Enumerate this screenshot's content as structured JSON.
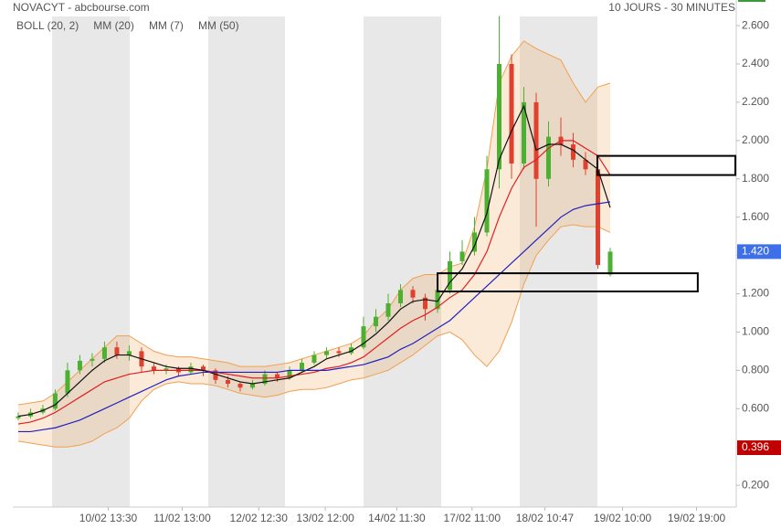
{
  "chart_data": {
    "type": "candlestick",
    "title": "NOVACYT - abcbourse.com",
    "subtitle": "10 JOURS - 30 MINUTES",
    "x": [
      0,
      1,
      2,
      3,
      4,
      5,
      6,
      7,
      8,
      9,
      10,
      11,
      12,
      13,
      14,
      15,
      16,
      17,
      18,
      19,
      20,
      21,
      22,
      23,
      24,
      25,
      26,
      27,
      28,
      29,
      30,
      31,
      32,
      33,
      34,
      35,
      36,
      37,
      38,
      39,
      40,
      41,
      42,
      43,
      44,
      45,
      46,
      47,
      48
    ],
    "xlim": [
      -0.44,
      58.22
    ],
    "xticks": [
      {
        "value": 7.3,
        "label": "10/02 13:30"
      },
      {
        "value": 13.3,
        "label": "11/02 13:00"
      },
      {
        "value": 19.5,
        "label": "12/02 12:30"
      },
      {
        "value": 24.9,
        "label": "13/02 12:00"
      },
      {
        "value": 30.7,
        "label": "14/02 11:30"
      },
      {
        "value": 36.8,
        "label": "17/02 11:00"
      },
      {
        "value": 42.7,
        "label": "18/02 10:47"
      },
      {
        "value": 49.0,
        "label": "19/02 10:00"
      },
      {
        "value": 55.0,
        "label": "19/02 19:00"
      }
    ],
    "ylim": [
      0.086,
      2.734
    ],
    "yticks": [
      {
        "value": 0.2,
        "label": "0.200"
      },
      {
        "value": 0.4,
        "label": "0.400"
      },
      {
        "value": 0.6,
        "label": "0.600"
      },
      {
        "value": 0.8,
        "label": "0.800"
      },
      {
        "value": 1.0,
        "label": "1.000"
      },
      {
        "value": 1.2,
        "label": "1.200"
      },
      {
        "value": 1.4,
        "label": "1.400"
      },
      {
        "value": 1.6,
        "label": "1.600"
      },
      {
        "value": 1.8,
        "label": "1.800"
      },
      {
        "value": 2.0,
        "label": "2.000"
      },
      {
        "value": 2.2,
        "label": "2.200"
      },
      {
        "value": 2.4,
        "label": "2.400"
      },
      {
        "value": 2.6,
        "label": "2.600"
      }
    ],
    "up_color": "#4cb030",
    "down_color": "#e0402e",
    "ohlc": {
      "open": [
        0.55,
        0.56,
        0.58,
        0.6,
        0.68,
        0.8,
        0.85,
        0.86,
        0.92,
        0.88,
        0.9,
        0.82,
        0.8,
        0.81,
        0.79,
        0.82,
        0.8,
        0.75,
        0.73,
        0.71,
        0.73,
        0.78,
        0.76,
        0.8,
        0.84,
        0.88,
        0.9,
        0.89,
        0.92,
        1.03,
        1.08,
        1.15,
        1.22,
        1.18,
        1.12,
        1.22,
        1.37,
        1.42,
        1.52,
        1.85,
        2.4,
        1.88,
        2.2,
        1.8,
        2.02,
        1.98,
        1.9,
        1.85,
        1.3
      ],
      "high": [
        0.58,
        0.6,
        0.62,
        0.7,
        0.84,
        0.88,
        0.89,
        0.95,
        0.95,
        0.93,
        0.92,
        0.84,
        0.83,
        0.82,
        0.84,
        0.83,
        0.81,
        0.77,
        0.74,
        0.75,
        0.8,
        0.79,
        0.82,
        0.86,
        0.9,
        0.92,
        0.92,
        0.94,
        1.08,
        1.12,
        1.2,
        1.25,
        1.24,
        1.2,
        1.25,
        1.42,
        1.48,
        1.6,
        1.92,
        2.65,
        2.45,
        2.28,
        2.25,
        2.1,
        2.12,
        2.04,
        1.94,
        1.88,
        1.44
      ],
      "low": [
        0.54,
        0.55,
        0.57,
        0.59,
        0.66,
        0.78,
        0.82,
        0.84,
        0.86,
        0.85,
        0.79,
        0.78,
        0.78,
        0.77,
        0.78,
        0.77,
        0.73,
        0.71,
        0.69,
        0.7,
        0.72,
        0.74,
        0.75,
        0.79,
        0.83,
        0.86,
        0.87,
        0.88,
        0.91,
        1.0,
        1.06,
        1.13,
        1.15,
        1.06,
        1.1,
        1.2,
        1.35,
        1.4,
        1.5,
        1.75,
        1.8,
        1.85,
        1.55,
        1.76,
        1.92,
        1.86,
        1.82,
        1.33,
        1.29
      ],
      "close": [
        0.56,
        0.58,
        0.6,
        0.68,
        0.8,
        0.85,
        0.86,
        0.92,
        0.88,
        0.9,
        0.82,
        0.8,
        0.81,
        0.79,
        0.82,
        0.8,
        0.75,
        0.73,
        0.71,
        0.73,
        0.78,
        0.76,
        0.8,
        0.84,
        0.88,
        0.9,
        0.89,
        0.92,
        1.03,
        1.08,
        1.15,
        1.22,
        1.18,
        1.12,
        1.22,
        1.37,
        1.42,
        1.52,
        1.85,
        2.4,
        1.88,
        2.2,
        1.8,
        2.02,
        1.98,
        1.9,
        1.85,
        1.35,
        1.42
      ]
    },
    "bollinger": {
      "name": "BOLL (20, 2)",
      "color": "#f0a050",
      "upper": [
        0.62,
        0.63,
        0.64,
        0.68,
        0.74,
        0.8,
        0.86,
        0.92,
        0.98,
        0.98,
        0.94,
        0.9,
        0.88,
        0.87,
        0.87,
        0.86,
        0.85,
        0.84,
        0.82,
        0.82,
        0.82,
        0.83,
        0.84,
        0.86,
        0.88,
        0.9,
        0.92,
        0.94,
        0.98,
        1.06,
        1.12,
        1.22,
        1.28,
        1.3,
        1.3,
        1.34,
        1.36,
        1.55,
        1.85,
        2.3,
        2.44,
        2.52,
        2.48,
        2.45,
        2.42,
        2.3,
        2.2,
        2.28,
        2.3
      ],
      "lower": [
        0.43,
        0.42,
        0.41,
        0.4,
        0.4,
        0.41,
        0.43,
        0.47,
        0.5,
        0.55,
        0.64,
        0.7,
        0.73,
        0.74,
        0.73,
        0.73,
        0.72,
        0.7,
        0.68,
        0.67,
        0.66,
        0.67,
        0.69,
        0.7,
        0.7,
        0.71,
        0.73,
        0.75,
        0.76,
        0.78,
        0.8,
        0.84,
        0.88,
        0.93,
        0.98,
        1.0,
        0.96,
        0.88,
        0.82,
        0.9,
        1.05,
        1.25,
        1.4,
        1.48,
        1.55,
        1.56,
        1.55,
        1.55,
        1.52
      ]
    },
    "series": [
      {
        "name": "MM (20)",
        "color": "#e02020",
        "values": [
          0.52,
          0.53,
          0.55,
          0.58,
          0.62,
          0.66,
          0.7,
          0.74,
          0.76,
          0.78,
          0.79,
          0.8,
          0.8,
          0.8,
          0.8,
          0.8,
          0.79,
          0.78,
          0.77,
          0.76,
          0.76,
          0.76,
          0.77,
          0.78,
          0.79,
          0.81,
          0.82,
          0.84,
          0.87,
          0.92,
          0.97,
          1.02,
          1.06,
          1.09,
          1.13,
          1.18,
          1.22,
          1.3,
          1.42,
          1.6,
          1.75,
          1.86,
          1.9,
          1.96,
          2.0,
          2.0,
          1.96,
          1.92,
          1.82
        ]
      },
      {
        "name": "MM (7)",
        "color": "#111111",
        "values": [
          0.56,
          0.57,
          0.59,
          0.62,
          0.68,
          0.74,
          0.8,
          0.85,
          0.88,
          0.88,
          0.86,
          0.84,
          0.82,
          0.81,
          0.81,
          0.8,
          0.78,
          0.76,
          0.74,
          0.73,
          0.74,
          0.75,
          0.76,
          0.79,
          0.82,
          0.86,
          0.88,
          0.9,
          0.94,
          0.99,
          1.05,
          1.12,
          1.16,
          1.17,
          1.16,
          1.26,
          1.33,
          1.45,
          1.62,
          1.9,
          2.05,
          2.18,
          1.95,
          1.98,
          1.98,
          1.95,
          1.9,
          1.85,
          1.65
        ]
      },
      {
        "name": "MM (50)",
        "color": "#2020c0",
        "values": [
          0.48,
          0.48,
          0.49,
          0.5,
          0.52,
          0.54,
          0.57,
          0.6,
          0.63,
          0.66,
          0.69,
          0.72,
          0.75,
          0.77,
          0.78,
          0.79,
          0.79,
          0.79,
          0.79,
          0.79,
          0.79,
          0.79,
          0.8,
          0.8,
          0.8,
          0.8,
          0.81,
          0.82,
          0.83,
          0.85,
          0.87,
          0.91,
          0.94,
          0.98,
          1.02,
          1.06,
          1.12,
          1.18,
          1.24,
          1.3,
          1.36,
          1.42,
          1.48,
          1.54,
          1.6,
          1.64,
          1.66,
          1.67,
          1.68
        ]
      }
    ],
    "zones": [
      {
        "from": 1.82,
        "to": 1.92,
        "x": [
          46.96,
          58.15
        ]
      },
      {
        "from": 1.212,
        "to": 1.307,
        "x": [
          34.0,
          55.1
        ]
      }
    ],
    "price_markers": [
      {
        "value": 1.42,
        "label": "1.420",
        "color": "#3d6fe8"
      },
      {
        "value": 0.396,
        "label": "0.396",
        "color": "#c00000"
      }
    ]
  }
}
